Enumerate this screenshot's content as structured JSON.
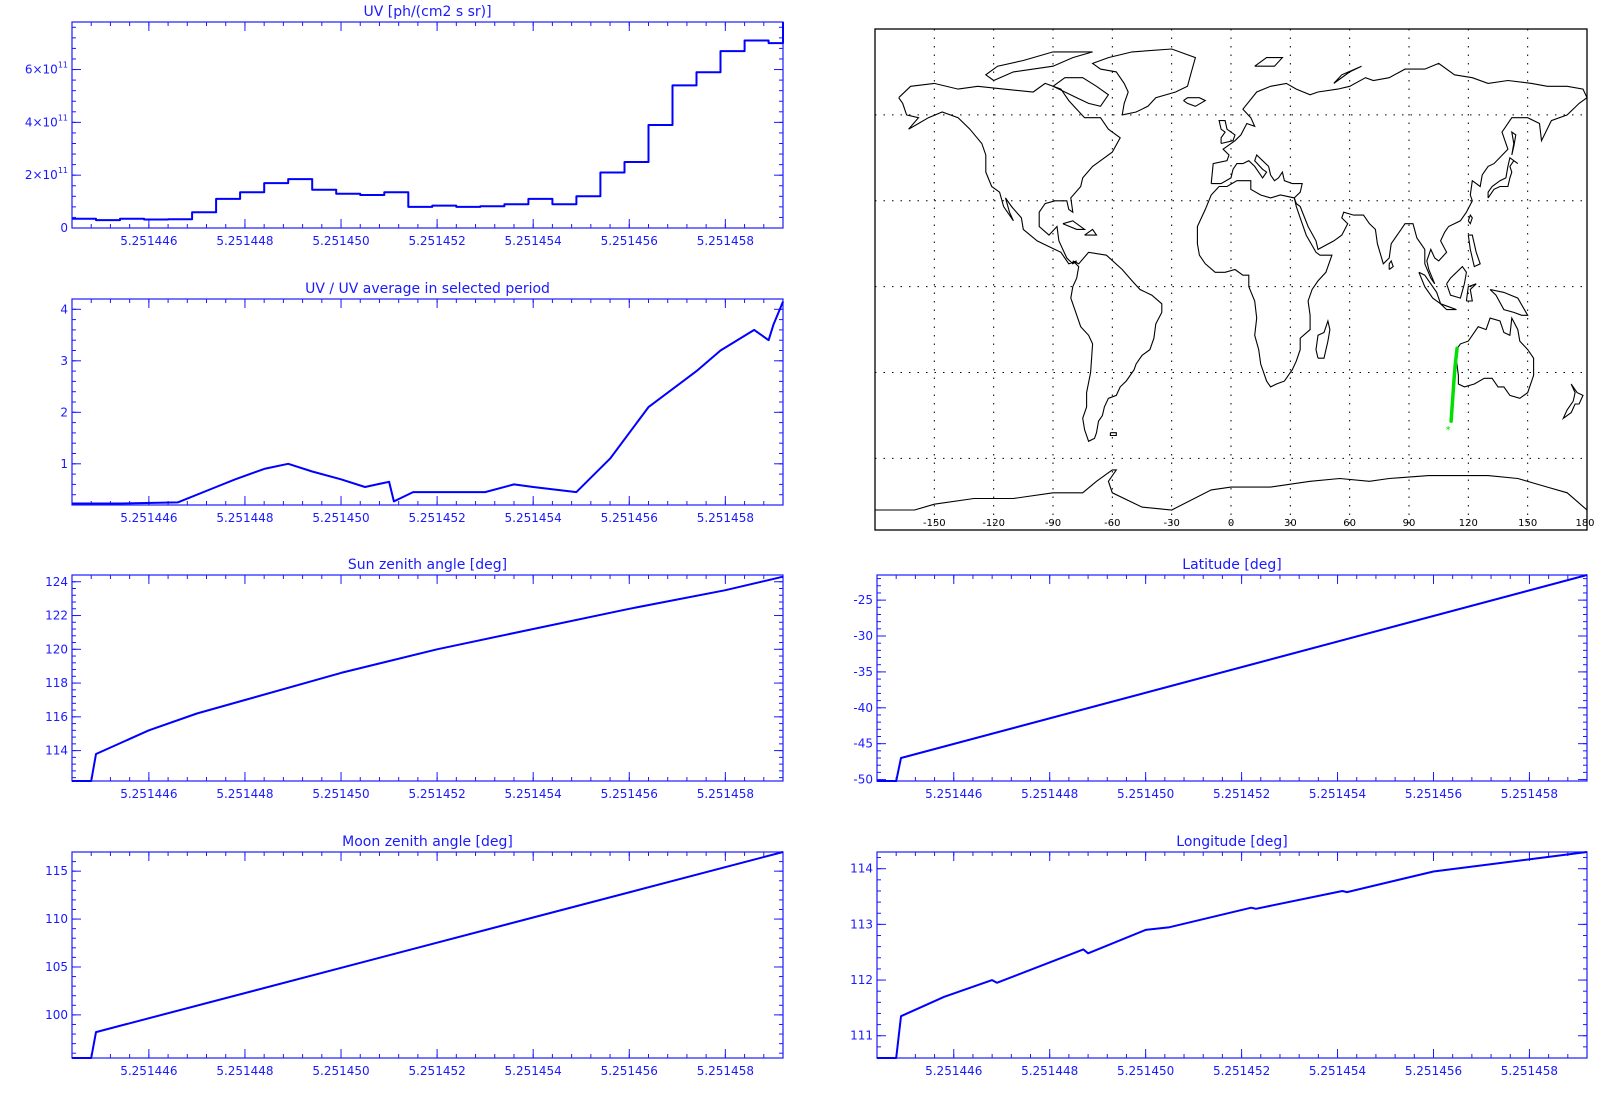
{
  "colors": {
    "axis": "#1a1aff",
    "line": "#0000ff",
    "map": "#000000",
    "grid": "#000000",
    "track": "#00e000"
  },
  "xticks": [
    "5.251446",
    "5.251448",
    "5.251450",
    "5.251452",
    "5.251454",
    "5.251456",
    "5.251458"
  ],
  "chart_data": [
    {
      "id": "uv",
      "type": "line",
      "style": "histogram",
      "title": "UV [ph/(cm2 s sr)]",
      "xlim": [
        5.2514444,
        5.2514592
      ],
      "ylim": [
        0,
        780000000000.0
      ],
      "yticks": [
        {
          "v": 0,
          "base": "0"
        },
        {
          "v": 200000000000.0,
          "base": "2×10",
          "exp": "11"
        },
        {
          "v": 400000000000.0,
          "base": "4×10",
          "exp": "11"
        },
        {
          "v": 600000000000.0,
          "base": "6×10",
          "exp": "11"
        }
      ],
      "x": [
        5.2514444,
        5.2514449,
        5.2514454,
        5.2514459,
        5.2514464,
        5.2514469,
        5.2514474,
        5.2514479,
        5.2514484,
        5.2514489,
        5.2514494,
        5.2514499,
        5.2514504,
        5.2514509,
        5.2514514,
        5.2514519,
        5.2514524,
        5.2514529,
        5.2514534,
        5.2514539,
        5.2514544,
        5.2514549,
        5.2514554,
        5.2514559,
        5.2514564,
        5.2514569,
        5.2514574,
        5.2514579,
        5.2514584,
        5.2514589,
        5.2514592
      ],
      "y": [
        35000000000.0,
        30000000000.0,
        35000000000.0,
        32000000000.0,
        33000000000.0,
        60000000000.0,
        110000000000.0,
        135000000000.0,
        170000000000.0,
        185000000000.0,
        145000000000.0,
        130000000000.0,
        125000000000.0,
        135000000000.0,
        80000000000.0,
        85000000000.0,
        80000000000.0,
        82000000000.0,
        90000000000.0,
        110000000000.0,
        90000000000.0,
        120000000000.0,
        210000000000.0,
        250000000000.0,
        390000000000.0,
        540000000000.0,
        590000000000.0,
        670000000000.0,
        710000000000.0,
        700000000000.0,
        780000000000.0
      ]
    },
    {
      "id": "ratio",
      "type": "line",
      "title": "UV / UV average in selected period",
      "xlim": [
        5.2514444,
        5.2514592
      ],
      "ylim": [
        0.2,
        4.2
      ],
      "yticks": [
        {
          "v": 1,
          "base": "1"
        },
        {
          "v": 2,
          "base": "2"
        },
        {
          "v": 3,
          "base": "3"
        },
        {
          "v": 4,
          "base": "4"
        }
      ],
      "x": [
        5.2514444,
        5.2514454,
        5.2514466,
        5.2514474,
        5.2514478,
        5.2514484,
        5.2514489,
        5.2514494,
        5.25145,
        5.2514505,
        5.251451,
        5.2514511,
        5.2514515,
        5.251453,
        5.2514536,
        5.251454,
        5.2514549,
        5.2514556,
        5.2514564,
        5.2514574,
        5.2514579,
        5.2514586,
        5.2514589,
        5.251459,
        5.2514592
      ],
      "y": [
        0.23,
        0.23,
        0.25,
        0.55,
        0.7,
        0.9,
        1.0,
        0.85,
        0.7,
        0.55,
        0.65,
        0.27,
        0.45,
        0.45,
        0.6,
        0.55,
        0.45,
        1.1,
        2.1,
        2.8,
        3.2,
        3.6,
        3.4,
        3.7,
        4.15
      ]
    },
    {
      "id": "sun",
      "type": "line",
      "title": "Sun zenith angle [deg]",
      "xlim": [
        5.2514444,
        5.2514592
      ],
      "ylim": [
        112.2,
        124.4
      ],
      "yticks": [
        {
          "v": 114,
          "base": "114"
        },
        {
          "v": 116,
          "base": "116"
        },
        {
          "v": 118,
          "base": "118"
        },
        {
          "v": 120,
          "base": "120"
        },
        {
          "v": 122,
          "base": "122"
        },
        {
          "v": 124,
          "base": "124"
        }
      ],
      "x": [
        5.2514444,
        5.2514448,
        5.2514449,
        5.251446,
        5.251447,
        5.251448,
        5.25145,
        5.251452,
        5.251454,
        5.251456,
        5.251458,
        5.2514592
      ],
      "y": [
        112.2,
        112.2,
        113.8,
        115.2,
        116.2,
        117.0,
        118.6,
        120.0,
        121.2,
        122.4,
        123.5,
        124.3
      ]
    },
    {
      "id": "lat",
      "type": "line",
      "title": "Latitude [deg]",
      "xlim": [
        5.2514444,
        5.2514592
      ],
      "ylim": [
        -50.2,
        -21.5
      ],
      "yticks": [
        {
          "v": -50,
          "base": "-50"
        },
        {
          "v": -45,
          "base": "-45"
        },
        {
          "v": -40,
          "base": "-40"
        },
        {
          "v": -35,
          "base": "-35"
        },
        {
          "v": -30,
          "base": "-30"
        },
        {
          "v": -25,
          "base": "-25"
        }
      ],
      "x": [
        5.2514444,
        5.2514448,
        5.2514449,
        5.2514592
      ],
      "y": [
        -50.2,
        -50.2,
        -47.0,
        -21.5
      ]
    },
    {
      "id": "moon",
      "type": "line",
      "title": "Moon zenith angle [deg]",
      "xlim": [
        5.2514444,
        5.2514592
      ],
      "ylim": [
        95.5,
        117.0
      ],
      "yticks": [
        {
          "v": 100,
          "base": "100"
        },
        {
          "v": 105,
          "base": "105"
        },
        {
          "v": 110,
          "base": "110"
        },
        {
          "v": 115,
          "base": "115"
        }
      ],
      "x": [
        5.2514444,
        5.2514448,
        5.2514449,
        5.2514592
      ],
      "y": [
        95.5,
        95.5,
        98.2,
        117.0
      ]
    },
    {
      "id": "lon",
      "type": "line",
      "title": "Longitude [deg]",
      "xlim": [
        5.2514444,
        5.2514592
      ],
      "ylim": [
        110.6,
        114.3
      ],
      "yticks": [
        {
          "v": 111,
          "base": "111"
        },
        {
          "v": 112,
          "base": "112"
        },
        {
          "v": 113,
          "base": "113"
        },
        {
          "v": 114,
          "base": "114"
        }
      ],
      "x": [
        5.2514444,
        5.2514448,
        5.2514449,
        5.2514458,
        5.2514468,
        5.2514469,
        5.2514487,
        5.2514488,
        5.25145,
        5.2514505,
        5.2514522,
        5.2514523,
        5.2514541,
        5.2514542,
        5.251456,
        5.2514592
      ],
      "y": [
        110.6,
        110.6,
        111.35,
        111.7,
        112.0,
        111.95,
        112.55,
        112.48,
        112.9,
        112.95,
        113.3,
        113.28,
        113.6,
        113.58,
        113.95,
        114.3
      ]
    }
  ],
  "map": {
    "lon_labels": [
      "-150",
      "-120",
      "-90",
      "-60",
      "-30",
      "0",
      "30",
      "60",
      "90",
      "120",
      "150",
      "180"
    ],
    "grid_lons": [
      -150,
      -120,
      -90,
      -60,
      -30,
      0,
      30,
      60,
      90,
      120,
      150
    ],
    "grid_lats": [
      60,
      30,
      0,
      -30,
      -60
    ],
    "track": [
      [
        111.3,
        -47.0
      ],
      [
        112.0,
        -40.0
      ],
      [
        112.7,
        -33.0
      ],
      [
        113.4,
        -27.0
      ],
      [
        114.3,
        -21.5
      ]
    ]
  }
}
